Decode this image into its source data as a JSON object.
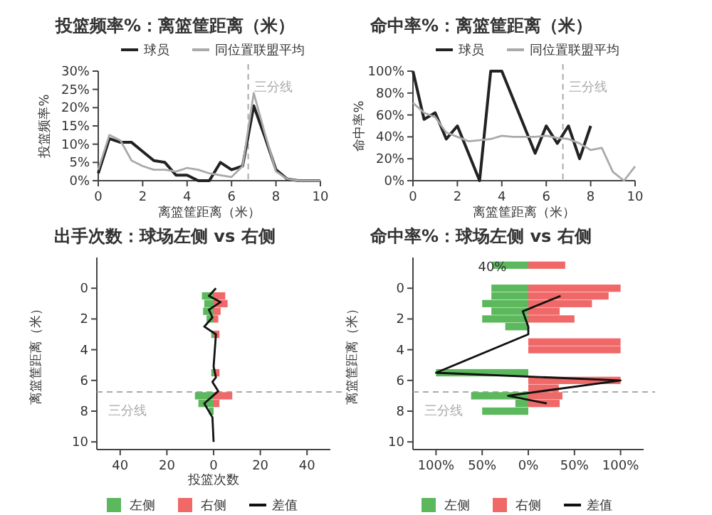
{
  "chart_data": [
    {
      "type": "line",
      "title": "投篮频率%：离篮筐距离（米）",
      "xlabel": "离篮筐距离（米）",
      "ylabel": "投篮频率%",
      "legend": "top right",
      "xlim": [
        0,
        10
      ],
      "xticks": [
        0,
        2,
        4,
        6,
        8,
        10
      ],
      "ylim": [
        0,
        30
      ],
      "yticks": [
        {
          "value": 0,
          "label": "0%"
        },
        {
          "value": 5,
          "label": "5%"
        },
        {
          "value": 10,
          "label": "10%"
        },
        {
          "value": 15,
          "label": "15%"
        },
        {
          "value": 20,
          "label": "20%"
        },
        {
          "value": 25,
          "label": "25%"
        },
        {
          "value": 30,
          "label": "30%"
        }
      ],
      "ref_lines": [
        {
          "axis": "x",
          "value": 6.75,
          "label": "三分线",
          "color": "#aaaaaa",
          "line_style": "dashed"
        }
      ],
      "series": [
        {
          "name": "球员",
          "color": "#222222",
          "x": [
            0,
            0.5,
            1,
            1.5,
            2,
            2.5,
            3,
            3.5,
            4,
            4.5,
            5,
            5.5,
            6,
            6.5,
            7,
            7.5,
            8,
            8.5,
            9,
            9.5,
            10
          ],
          "values": [
            2,
            11.5,
            10.5,
            10.5,
            8,
            5.5,
            5,
            1.5,
            1.5,
            0,
            0,
            5,
            3,
            4,
            20.5,
            12,
            3,
            0.5,
            0,
            0,
            0
          ]
        },
        {
          "name": "同位置联盟平均",
          "color": "#aaaaaa",
          "x": [
            0,
            0.5,
            1,
            1.5,
            2,
            2.5,
            3,
            3.5,
            4,
            4.5,
            5,
            5.5,
            6,
            6.5,
            7,
            7.5,
            8,
            8.5,
            9,
            9.5,
            10
          ],
          "values": [
            3,
            12.5,
            11,
            5.5,
            4,
            3,
            3,
            2.5,
            3.5,
            3,
            2,
            1.5,
            1,
            4,
            24,
            13,
            2.5,
            0.5,
            0,
            0,
            0
          ]
        }
      ]
    },
    {
      "type": "line",
      "title": "命中率%：离篮筐距离（米）",
      "xlabel": "离篮筐距离（米）",
      "ylabel": "命中率%",
      "legend": "top right",
      "xlim": [
        0,
        10
      ],
      "xticks": [
        0,
        2,
        4,
        6,
        8,
        10
      ],
      "ylim": [
        0,
        100
      ],
      "yticks": [
        {
          "value": 0,
          "label": "0%"
        },
        {
          "value": 20,
          "label": "20%"
        },
        {
          "value": 40,
          "label": "40%"
        },
        {
          "value": 60,
          "label": "60%"
        },
        {
          "value": 80,
          "label": "80%"
        },
        {
          "value": 100,
          "label": "100%"
        }
      ],
      "ref_lines": [
        {
          "axis": "x",
          "value": 6.75,
          "label": "三分线",
          "color": "#aaaaaa",
          "line_style": "dashed"
        }
      ],
      "series": [
        {
          "name": "球员",
          "color": "#222222",
          "x": [
            0,
            0.5,
            1,
            1.5,
            2,
            3,
            3.5,
            4,
            5.5,
            6,
            6.5,
            7,
            7.5,
            8
          ],
          "values": [
            100,
            56,
            62,
            38,
            50,
            0,
            100,
            100,
            25,
            50,
            34,
            50,
            20,
            50
          ]
        },
        {
          "name": "同位置联盟平均",
          "color": "#aaaaaa",
          "x": [
            0,
            0.5,
            1,
            1.5,
            2,
            2.5,
            3,
            3.5,
            4,
            4.5,
            5,
            5.5,
            6,
            6.5,
            7,
            7.5,
            8,
            8.5,
            9,
            9.5,
            10
          ],
          "values": [
            71,
            62,
            58,
            44,
            40,
            36,
            37,
            38,
            41,
            40,
            40,
            40,
            41,
            39,
            38,
            34,
            28,
            30,
            8,
            0,
            13
          ]
        }
      ]
    },
    {
      "type": "bar",
      "orientation": "horizontal",
      "stacked": true,
      "title": "出手次数：球场左侧 vs 右侧",
      "xlabel": "投篮次数",
      "ylabel": "离篮筐距离（米）",
      "legend": "bottom",
      "xlim": [
        -50,
        50
      ],
      "xticks": [
        {
          "value": -40,
          "label": "40"
        },
        {
          "value": -20,
          "label": "20"
        },
        0,
        20,
        40
      ],
      "ylim": [
        10.5,
        -2
      ],
      "yticks": [
        0,
        2,
        4,
        6,
        8,
        10
      ],
      "ref_lines": [
        {
          "axis": "y",
          "value": 6.75,
          "label": "三分线",
          "color": "#aaaaaa",
          "line_style": "dashed"
        }
      ],
      "series": [
        {
          "name": "左侧",
          "color": "#5cb85c",
          "x": [
            0.5,
            1,
            1.5,
            2,
            3,
            5.5,
            7,
            7.5,
            8
          ],
          "values": [
            -5,
            -4,
            -4.5,
            -3,
            -1,
            -1,
            -8,
            -6.5,
            -2
          ]
        },
        {
          "name": "右侧",
          "color": "#f06868",
          "x": [
            0.5,
            1,
            1.5,
            2,
            3,
            5.5,
            7,
            7.5
          ],
          "values": [
            5,
            6,
            3,
            2,
            2.5,
            2.5,
            8,
            2.5
          ]
        },
        {
          "name": "差值",
          "type": "line",
          "color": "#111111",
          "x": [
            0,
            0.5,
            0.9,
            1.4,
            1.9,
            2.5,
            3,
            5.1,
            5.8,
            6.1,
            6.7,
            7.5,
            8.4,
            10
          ],
          "values": [
            1,
            -2,
            3,
            -2,
            -0.5,
            -4,
            1,
            0,
            1,
            -0.5,
            2,
            -4,
            -0.5,
            0
          ]
        }
      ]
    },
    {
      "type": "bar",
      "orientation": "horizontal",
      "stacked": true,
      "title": "命中率%：球场左侧 vs 右侧",
      "ylabel": "离篮筐距离（米）",
      "legend": "bottom",
      "xlim": [
        -125,
        125
      ],
      "xticks": [
        {
          "value": -100,
          "label": "100%"
        },
        {
          "value": -50,
          "label": "50%"
        },
        {
          "value": 0,
          "label": "0%"
        },
        {
          "value": 50,
          "label": "50%"
        },
        {
          "value": 100,
          "label": "100%"
        }
      ],
      "ylim": [
        10.5,
        -2
      ],
      "yticks": [
        0,
        2,
        4,
        6,
        8,
        10
      ],
      "ref_lines": [
        {
          "axis": "y",
          "value": 6.75,
          "label": "三分线",
          "color": "#aaaaaa",
          "line_style": "dashed"
        }
      ],
      "annotations": [
        {
          "text": "40%",
          "x": -39,
          "y": -1.5
        }
      ],
      "series": [
        {
          "name": "左侧",
          "color": "#5cb85c",
          "x": [
            -1.5,
            0,
            0.5,
            1,
            1.5,
            2,
            2.5,
            5.5,
            7,
            7.5,
            8
          ],
          "values": [
            -39,
            -40,
            -40,
            -50,
            -40,
            -50,
            -25,
            -100,
            -62,
            -14,
            -50
          ]
        },
        {
          "name": "右侧",
          "color": "#f06868",
          "x": [
            -1.5,
            0,
            0.5,
            1,
            1.5,
            2,
            3.5,
            4,
            6,
            6.5,
            7,
            7.5
          ],
          "values": [
            40,
            100,
            87,
            69,
            34,
            50,
            100,
            100,
            100,
            33,
            37,
            34
          ]
        },
        {
          "name": "差值",
          "type": "line",
          "color": "#111111",
          "x": [
            0.5,
            1.5,
            2.5,
            3,
            5.5,
            6,
            7,
            7.5
          ],
          "values": [
            35,
            -6,
            0,
            0,
            -100,
            100,
            -22,
            20
          ]
        }
      ]
    }
  ]
}
